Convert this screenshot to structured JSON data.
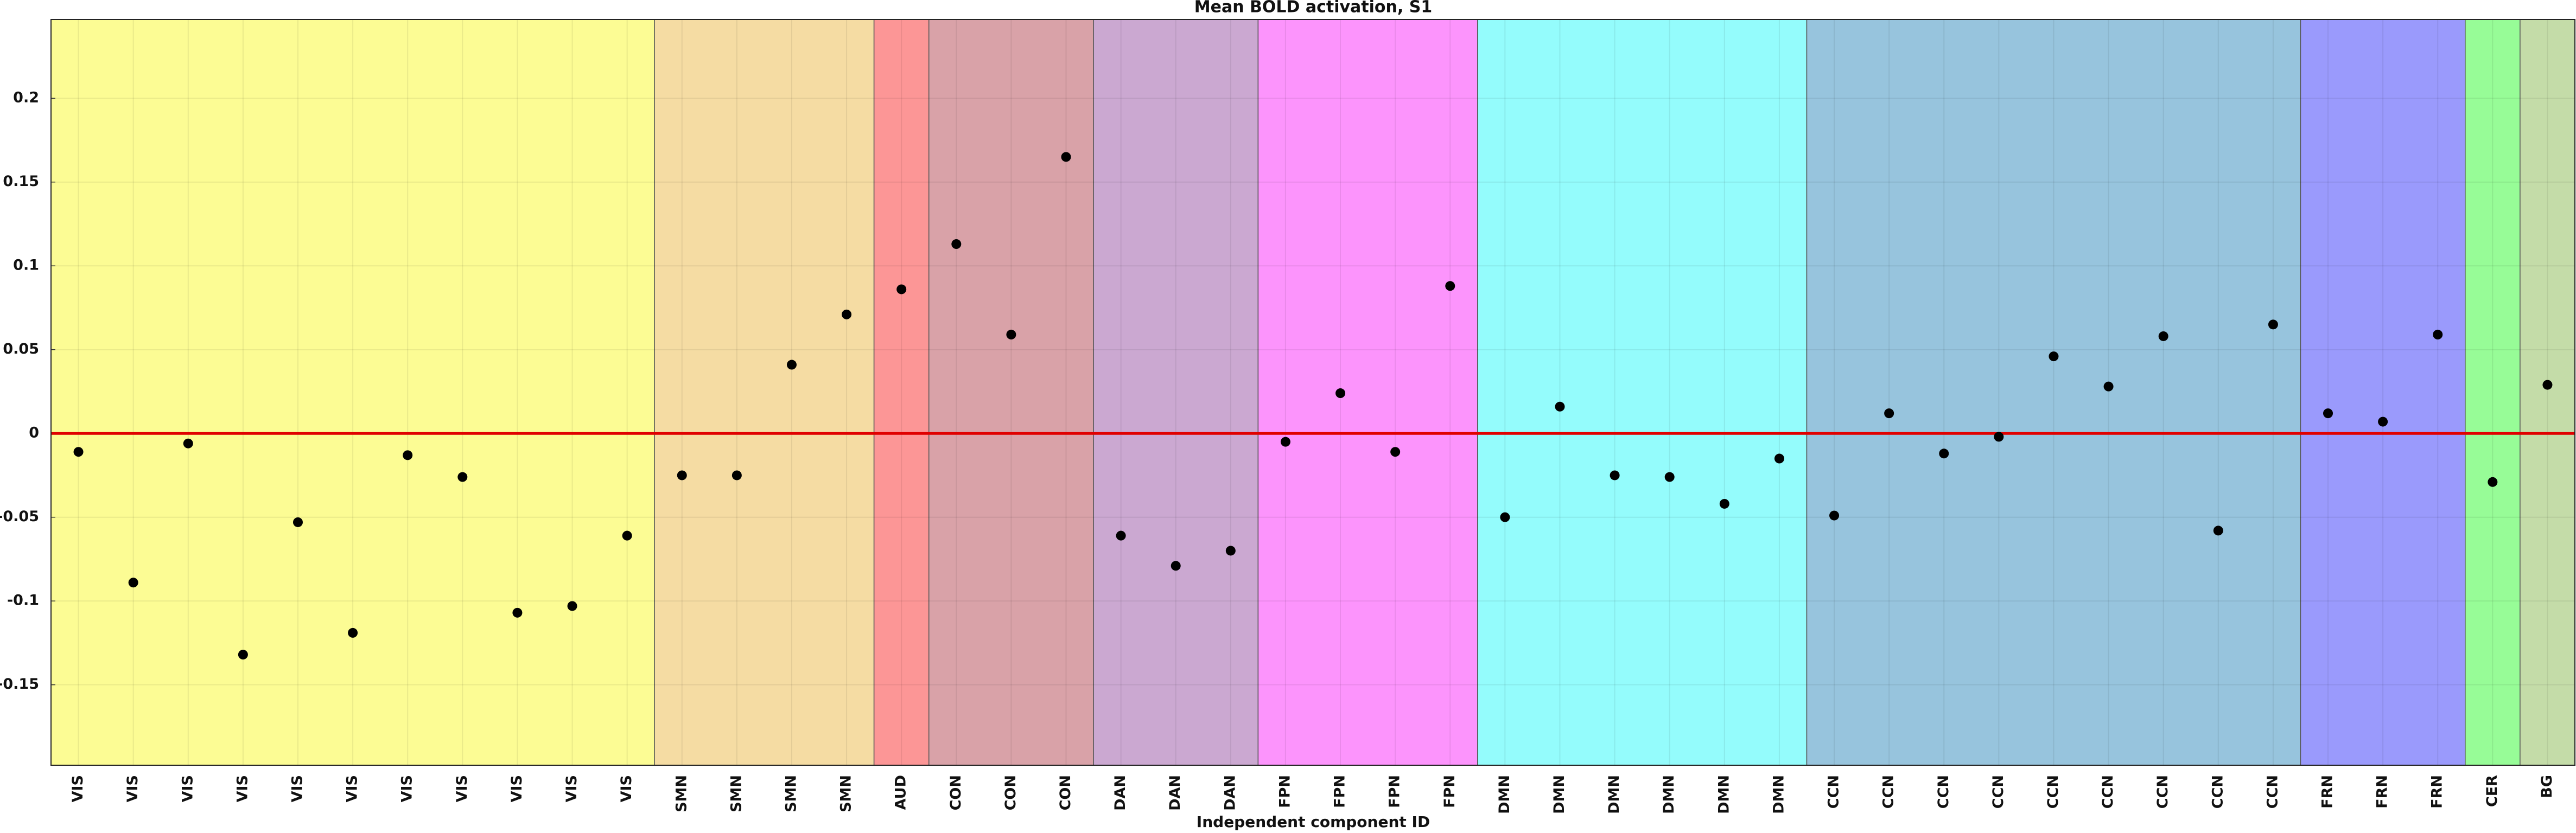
{
  "chart_data": {
    "type": "scatter",
    "title": "Mean BOLD activation, S1",
    "x_label": "Independent component ID",
    "categories": [
      "VIS",
      "VIS",
      "VIS",
      "VIS",
      "VIS",
      "VIS",
      "VIS",
      "VIS",
      "VIS",
      "VIS",
      "VIS",
      "SMN",
      "SMN",
      "SMN",
      "SMN",
      "AUD",
      "CON",
      "CON",
      "CON",
      "DAN",
      "DAN",
      "DAN",
      "FPN",
      "FPN",
      "FPN",
      "FPN",
      "DMN",
      "DMN",
      "DMN",
      "DMN",
      "DMN",
      "DMN",
      "CCN",
      "CCN",
      "CCN",
      "CCN",
      "CCN",
      "CCN",
      "CCN",
      "CCN",
      "CCN",
      "FRN",
      "FRN",
      "FRN",
      "CER",
      "BG"
    ],
    "values": [
      -0.011,
      -0.089,
      -0.006,
      -0.132,
      -0.053,
      -0.119,
      -0.013,
      -0.026,
      -0.107,
      -0.103,
      -0.061,
      -0.025,
      -0.025,
      0.041,
      0.071,
      0.086,
      0.113,
      0.059,
      0.165,
      -0.061,
      -0.079,
      -0.07,
      -0.005,
      0.024,
      -0.011,
      0.088,
      -0.05,
      0.016,
      -0.025,
      -0.026,
      -0.042,
      -0.015,
      -0.049,
      0.012,
      -0.012,
      -0.002,
      0.046,
      0.028,
      0.058,
      -0.058,
      0.065,
      0.012,
      0.007,
      0.059,
      -0.029,
      0.029
    ],
    "color": "#000000",
    "region_colors": [
      "#fcfc94",
      "#f5dca3",
      "#fc9696",
      "#d9a2a8",
      "#cba8d1",
      "#fc94fc",
      "#94fcfc",
      "#97c4dd",
      "#9a9afc",
      "#97fc97",
      "#c4dca8"
    ],
    "reference_line": {
      "value": 0,
      "color": "#e00000"
    },
    "ylim": [
      -0.198,
      0.247
    ],
    "yticks": [
      -0.15,
      -0.1,
      -0.05,
      0,
      0.05,
      0.1,
      0.15,
      0.2
    ],
    "grid": true
  }
}
